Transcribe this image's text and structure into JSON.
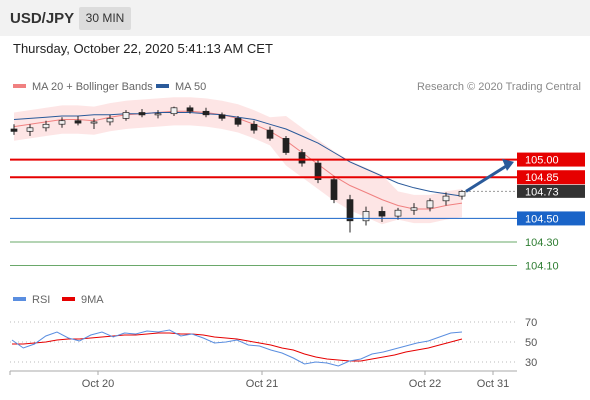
{
  "header": {
    "symbol": "USD/JPY",
    "timeframe": "30 MIN",
    "datetime": "Thursday, October 22, 2020 5:41:13 AM CET"
  },
  "legend": {
    "ma20": "MA 20 + Bollinger Bands",
    "ma50": "MA 50",
    "credit": "Research © 2020 Trading Central"
  },
  "rsi_legend": {
    "rsi": "RSI",
    "ma9": "9MA"
  },
  "colors": {
    "resistance": "#e60000",
    "support": "#1a64c8",
    "pivot": "#2e7d32",
    "current": "#333333",
    "ma20": "#f08080",
    "ma50": "#2a5a9a",
    "bollinger_fill": "#fde0e0",
    "candle_up": "#f0f0f0",
    "candle_down": "#222222",
    "arrow": "#2a5a9a",
    "rsi": "#5a8ee0",
    "rsi_ma": "#e60000"
  },
  "chart_data": [
    {
      "type": "candlestick",
      "title": "USD/JPY",
      "interval": "30 MIN",
      "x_tick_labels": [
        "Oct 20",
        "Oct 21",
        "Oct 22",
        "Oct 31"
      ],
      "ylim": [
        104.0,
        105.45
      ],
      "grid": false,
      "price_levels": [
        {
          "label": "105.00",
          "value": 105.0,
          "kind": "resistance"
        },
        {
          "label": "104.85",
          "value": 104.85,
          "kind": "resistance"
        },
        {
          "label": "104.73",
          "value": 104.73,
          "kind": "current"
        },
        {
          "label": "104.50",
          "value": 104.5,
          "kind": "support"
        },
        {
          "label": "104.30",
          "value": 104.3,
          "kind": "pivot"
        },
        {
          "label": "104.10",
          "value": 104.1,
          "kind": "pivot"
        }
      ],
      "series": [
        {
          "name": "MA 20 + Bollinger Bands",
          "values": [
            105.28,
            105.3,
            105.32,
            105.34,
            105.34,
            105.33,
            105.36,
            105.38,
            105.39,
            105.4,
            105.41,
            105.41,
            105.4,
            105.38,
            105.35,
            105.3,
            105.24,
            105.16,
            105.06,
            104.96,
            104.86,
            104.78,
            104.72,
            104.66,
            104.61,
            104.58,
            104.58,
            104.61,
            104.63
          ]
        },
        {
          "name": "MA 50",
          "values": [
            105.34,
            105.35,
            105.36,
            105.37,
            105.37,
            105.38,
            105.38,
            105.39,
            105.39,
            105.4,
            105.4,
            105.4,
            105.39,
            105.38,
            105.36,
            105.34,
            105.3,
            105.26,
            105.2,
            105.14,
            105.06,
            104.98,
            104.92,
            104.86,
            104.8,
            104.76,
            104.73,
            104.71,
            104.69
          ]
        }
      ],
      "ohlc": [
        {
          "o": 105.26,
          "h": 105.3,
          "l": 105.21,
          "c": 105.24
        },
        {
          "o": 105.24,
          "h": 105.3,
          "l": 105.2,
          "c": 105.27
        },
        {
          "o": 105.27,
          "h": 105.33,
          "l": 105.24,
          "c": 105.3
        },
        {
          "o": 105.3,
          "h": 105.36,
          "l": 105.27,
          "c": 105.33
        },
        {
          "o": 105.33,
          "h": 105.37,
          "l": 105.29,
          "c": 105.31
        },
        {
          "o": 105.31,
          "h": 105.35,
          "l": 105.26,
          "c": 105.32
        },
        {
          "o": 105.32,
          "h": 105.38,
          "l": 105.29,
          "c": 105.35
        },
        {
          "o": 105.35,
          "h": 105.42,
          "l": 105.33,
          "c": 105.4
        },
        {
          "o": 105.4,
          "h": 105.43,
          "l": 105.36,
          "c": 105.38
        },
        {
          "o": 105.38,
          "h": 105.42,
          "l": 105.35,
          "c": 105.39
        },
        {
          "o": 105.39,
          "h": 105.45,
          "l": 105.37,
          "c": 105.44
        },
        {
          "o": 105.44,
          "h": 105.46,
          "l": 105.39,
          "c": 105.41
        },
        {
          "o": 105.41,
          "h": 105.44,
          "l": 105.36,
          "c": 105.38
        },
        {
          "o": 105.38,
          "h": 105.4,
          "l": 105.33,
          "c": 105.35
        },
        {
          "o": 105.35,
          "h": 105.37,
          "l": 105.28,
          "c": 105.3
        },
        {
          "o": 105.3,
          "h": 105.33,
          "l": 105.22,
          "c": 105.25
        },
        {
          "o": 105.25,
          "h": 105.28,
          "l": 105.16,
          "c": 105.18
        },
        {
          "o": 105.18,
          "h": 105.2,
          "l": 105.04,
          "c": 105.06
        },
        {
          "o": 105.06,
          "h": 105.09,
          "l": 104.94,
          "c": 104.97
        },
        {
          "o": 104.97,
          "h": 105.0,
          "l": 104.8,
          "c": 104.83
        },
        {
          "o": 104.83,
          "h": 104.86,
          "l": 104.63,
          "c": 104.66
        },
        {
          "o": 104.66,
          "h": 104.7,
          "l": 104.38,
          "c": 104.48
        },
        {
          "o": 104.48,
          "h": 104.6,
          "l": 104.44,
          "c": 104.56
        },
        {
          "o": 104.56,
          "h": 104.6,
          "l": 104.47,
          "c": 104.52
        },
        {
          "o": 104.52,
          "h": 104.59,
          "l": 104.49,
          "c": 104.57
        },
        {
          "o": 104.57,
          "h": 104.63,
          "l": 104.53,
          "c": 104.59
        },
        {
          "o": 104.59,
          "h": 104.67,
          "l": 104.56,
          "c": 104.65
        },
        {
          "o": 104.65,
          "h": 104.72,
          "l": 104.61,
          "c": 104.69
        },
        {
          "o": 104.69,
          "h": 104.74,
          "l": 104.66,
          "c": 104.73
        }
      ],
      "forecast": {
        "from": 104.73,
        "to": 104.98
      }
    },
    {
      "type": "line",
      "title": "",
      "ylim": [
        20,
        80
      ],
      "y_tick_labels": [
        "70",
        "50",
        "30"
      ],
      "reference_lines": [
        70,
        50,
        30
      ],
      "series": [
        {
          "name": "RSI",
          "values": [
            52,
            44,
            48,
            56,
            60,
            54,
            51,
            57,
            60,
            55,
            59,
            58,
            61,
            60,
            62,
            56,
            58,
            54,
            49,
            50,
            52,
            47,
            46,
            42,
            39,
            34,
            28,
            30,
            29,
            26,
            31,
            33,
            38,
            40,
            43,
            46,
            49,
            51,
            55,
            59,
            60
          ]
        },
        {
          "name": "9MA",
          "values": [
            48,
            48,
            49,
            50,
            52,
            53,
            53,
            54,
            55,
            56,
            57,
            57,
            58,
            59,
            59,
            58,
            58,
            57,
            55,
            54,
            53,
            51,
            49,
            47,
            44,
            42,
            38,
            35,
            33,
            32,
            31,
            31,
            33,
            35,
            37,
            40,
            42,
            44,
            47,
            50,
            53
          ]
        }
      ]
    }
  ]
}
